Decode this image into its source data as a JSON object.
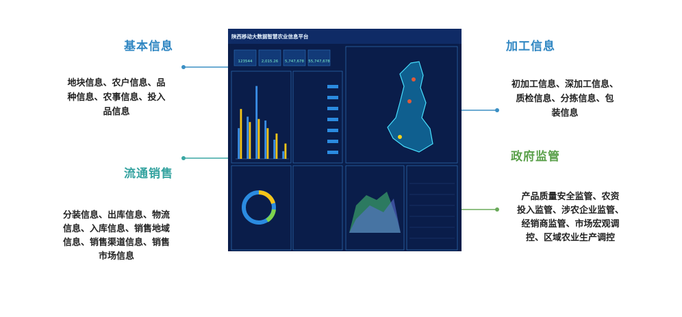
{
  "left": [
    {
      "title": "基本信息",
      "lines": [
        "地块信息、农户信息、品",
        "种信息、农事信息、投入",
        "品信息"
      ]
    },
    {
      "title": "流通销售",
      "lines": [
        "分装信息、出库信息、物流",
        "信息、入库信息、销售地域",
        "信息、销售渠道信息、销售",
        "市场信息"
      ]
    }
  ],
  "right": [
    {
      "title": "加工信息",
      "lines": [
        "初加工信息、深加工信息、",
        "质检信息、分拣信息、包",
        "装信息"
      ]
    },
    {
      "title": "政府监管",
      "lines": [
        "产品质量安全监管、农资",
        "投入监管、涉农企业监管、",
        "经销商监管、市场宏观调",
        "控、区域农业生产调控"
      ]
    }
  ],
  "dashboard": {
    "title": "陕西移动大数据智慧农业信息平台",
    "kpis": [
      "123544",
      "2,015.26",
      "5,747,678",
      "55,747,678"
    ],
    "chart_data": {
      "type": "bar",
      "ylim": [
        0,
        100
      ],
      "series": [
        {
          "color": "#3a8ee6",
          "values": [
            40,
            55,
            95,
            50,
            25,
            10
          ]
        },
        {
          "color": "#f5c518",
          "values": [
            65,
            48,
            52,
            40,
            33,
            20
          ]
        }
      ]
    }
  }
}
